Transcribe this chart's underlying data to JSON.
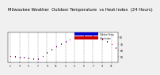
{
  "title": "Milwaukee Weather  Outdoor Temperature  vs Heat Index  (24 Hours)",
  "title_fontsize": 3.8,
  "background_color": "#f0f0f0",
  "plot_bg_color": "#ffffff",
  "legend_labels": [
    "Outdoor Temp",
    "Heat Index"
  ],
  "legend_colors": [
    "#0000cc",
    "#cc0000"
  ],
  "blue_x": [
    0,
    1,
    2,
    3,
    4,
    5,
    6,
    7,
    8,
    9,
    10,
    11,
    12,
    13,
    14,
    15,
    16,
    17,
    18,
    19,
    20,
    21,
    22,
    23
  ],
  "blue_y": [
    52,
    51,
    50,
    50,
    49,
    48,
    48,
    52,
    57,
    62,
    67,
    71,
    74,
    77,
    79,
    81,
    83,
    84,
    83,
    81,
    78,
    74,
    70,
    65
  ],
  "red_x": [
    0,
    1,
    2,
    3,
    4,
    5,
    6,
    7,
    8,
    9,
    10,
    11,
    12,
    13,
    14,
    15,
    16,
    17,
    18,
    19,
    20,
    21,
    22,
    23
  ],
  "red_y": [
    51,
    50,
    49,
    49,
    48,
    47,
    47,
    51,
    56,
    61,
    66,
    70,
    73,
    77,
    79,
    81,
    83,
    84,
    83,
    81,
    77,
    73,
    69,
    64
  ],
  "xlim": [
    -0.5,
    23.5
  ],
  "ylim": [
    42,
    88
  ],
  "xtick_positions": [
    0,
    2,
    4,
    6,
    8,
    10,
    12,
    14,
    16,
    18,
    20,
    22
  ],
  "xtick_labels": [
    "1",
    "3",
    "5",
    "7",
    "9",
    "11",
    "1",
    "3",
    "5",
    "7",
    "9",
    "11"
  ],
  "ytick_values": [
    50,
    60,
    70,
    80
  ],
  "grid_positions": [
    0,
    2,
    4,
    6,
    8,
    10,
    12,
    14,
    16,
    18,
    20,
    22
  ],
  "grid_color": "#888888",
  "dot_size": 2.5
}
